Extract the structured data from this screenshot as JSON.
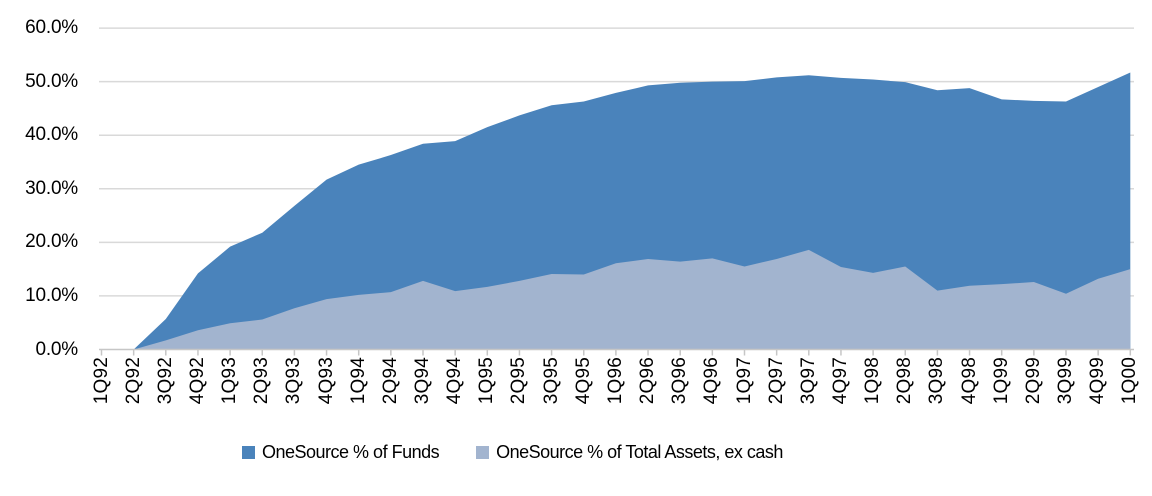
{
  "chart_data": {
    "type": "area",
    "title": "",
    "categories": [
      "1Q92",
      "2Q92",
      "3Q92",
      "4Q92",
      "1Q93",
      "2Q93",
      "3Q93",
      "4Q93",
      "1Q94",
      "2Q94",
      "3Q94",
      "4Q94",
      "1Q95",
      "2Q95",
      "3Q95",
      "4Q95",
      "1Q96",
      "2Q96",
      "3Q96",
      "4Q96",
      "1Q97",
      "2Q97",
      "3Q97",
      "4Q97",
      "1Q98",
      "2Q98",
      "3Q98",
      "4Q98",
      "1Q99",
      "2Q99",
      "3Q99",
      "4Q99",
      "1Q00"
    ],
    "series": [
      {
        "name": "OneSource % of Funds",
        "color": "#4A83BB",
        "values": [
          0,
          0,
          5.7,
          14.2,
          19.2,
          21.8,
          26.8,
          31.7,
          34.5,
          36.3,
          38.4,
          38.9,
          41.5,
          43.7,
          45.6,
          46.3,
          47.9,
          49.3,
          49.8,
          50.0,
          50.1,
          50.8,
          51.2,
          50.7,
          50.4,
          49.9,
          48.4,
          48.8,
          46.7,
          46.4,
          46.3,
          49.0,
          51.7
        ]
      },
      {
        "name": "OneSource % of Total Assets, ex cash",
        "color": "#A2B4CF",
        "values": [
          0,
          0,
          1.7,
          3.6,
          4.9,
          5.6,
          7.7,
          9.4,
          10.2,
          10.7,
          12.8,
          10.9,
          11.7,
          12.8,
          14.1,
          14.0,
          16.1,
          16.9,
          16.4,
          17.0,
          15.5,
          16.9,
          18.6,
          15.4,
          14.3,
          15.5,
          11.0,
          11.9,
          12.2,
          12.6,
          10.4,
          13.2,
          15.0
        ]
      }
    ],
    "ylim": [
      0,
      60
    ],
    "ytick_step": 10,
    "ytick_labels": [
      "0.0%",
      "10.0%",
      "20.0%",
      "30.0%",
      "40.0%",
      "50.0%",
      "60.0%"
    ],
    "xlabel": "",
    "ylabel": "",
    "grid": "horizontal",
    "legend_position": "bottom",
    "areas_overlap_not_stacked": true
  },
  "colors": {
    "gridline": "#D9D9D9",
    "axis_line": "#C6C6C6",
    "tick": "#C6C6C6",
    "text": "#000000",
    "background": "#FFFFFF"
  }
}
